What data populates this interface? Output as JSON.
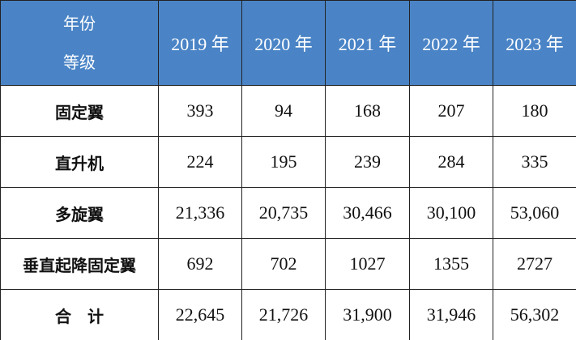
{
  "table": {
    "header": {
      "corner_top": "年份",
      "corner_bottom": "等级",
      "columns": [
        "2019 年",
        "2020 年",
        "2021 年",
        "2022 年",
        "2023 年"
      ]
    },
    "rows": [
      [
        "固定翼",
        "393",
        "94",
        "168",
        "207",
        "180"
      ],
      [
        "直升机",
        "224",
        "195",
        "239",
        "284",
        "335"
      ],
      [
        "多旋翼",
        "21,336",
        "20,735",
        "30,466",
        "30,100",
        "53,060"
      ],
      [
        "垂直起降固定翼",
        "692",
        "702",
        "1027",
        "1355",
        "2727"
      ],
      [
        "合　计",
        "22,645",
        "21,726",
        "31,900",
        "31,946",
        "56,302"
      ]
    ]
  }
}
